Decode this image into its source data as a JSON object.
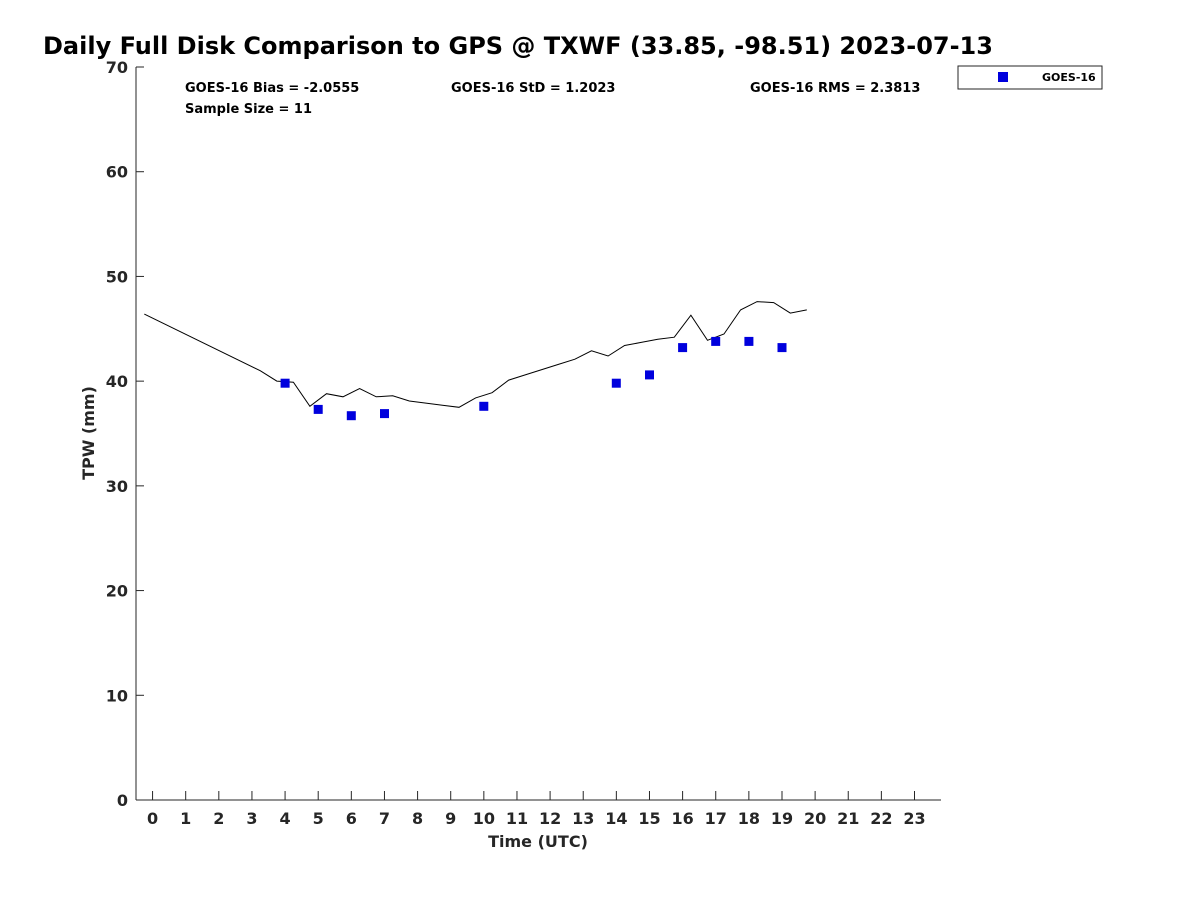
{
  "chart_data": {
    "type": "scatter",
    "title": "Daily Full Disk Comparison to GPS @ TXWF (33.85, -98.51) 2023-07-13",
    "xlabel": "Time (UTC)",
    "ylabel": "TPW (mm)",
    "xlim": [
      -0.5,
      23.8
    ],
    "ylim": [
      0,
      70
    ],
    "x_ticks": [
      0,
      1,
      2,
      3,
      4,
      5,
      6,
      7,
      8,
      9,
      10,
      11,
      12,
      13,
      14,
      15,
      16,
      17,
      18,
      19,
      20,
      21,
      22,
      23
    ],
    "y_ticks": [
      0,
      10,
      20,
      30,
      40,
      50,
      60,
      70
    ],
    "grid": false,
    "legend_position": "top-right, outside plot",
    "stats": {
      "bias": "GOES-16 Bias = -2.0555",
      "std": "GOES-16 StD = 1.2023",
      "rms": "GOES-16 RMS = 2.3813",
      "sample": "Sample Size = 11"
    },
    "series": [
      {
        "name": "GOES-16",
        "kind": "scatter",
        "marker": "square",
        "color": "#0000dd",
        "x": [
          4,
          5,
          6,
          7,
          10,
          14,
          15,
          16,
          17,
          18,
          19
        ],
        "y": [
          39.8,
          37.3,
          36.7,
          36.9,
          37.6,
          39.8,
          40.6,
          43.2,
          43.8,
          43.8,
          43.2
        ]
      },
      {
        "kind": "line",
        "color": "#000000",
        "x": [
          -0.25,
          3.25,
          3.75,
          4.25,
          4.75,
          5.25,
          5.75,
          6.25,
          6.75,
          7.25,
          7.75,
          8.25,
          8.75,
          9.25,
          9.75,
          10.25,
          10.75,
          11.25,
          11.75,
          12.25,
          12.75,
          13.25,
          13.75,
          14.25,
          14.75,
          15.25,
          15.75,
          16.25,
          16.75,
          17.25,
          17.75,
          18.25,
          18.75,
          19.25,
          19.75
        ],
        "y": [
          46.4,
          41.0,
          40.0,
          39.9,
          37.6,
          38.8,
          38.5,
          39.3,
          38.5,
          38.6,
          38.1,
          37.9,
          37.7,
          37.5,
          38.4,
          38.9,
          40.1,
          40.6,
          41.1,
          41.6,
          42.1,
          42.9,
          42.4,
          43.4,
          43.7,
          44.0,
          44.2,
          46.3,
          43.9,
          44.5,
          46.8,
          47.6,
          47.5,
          46.5,
          46.8
        ]
      }
    ]
  }
}
